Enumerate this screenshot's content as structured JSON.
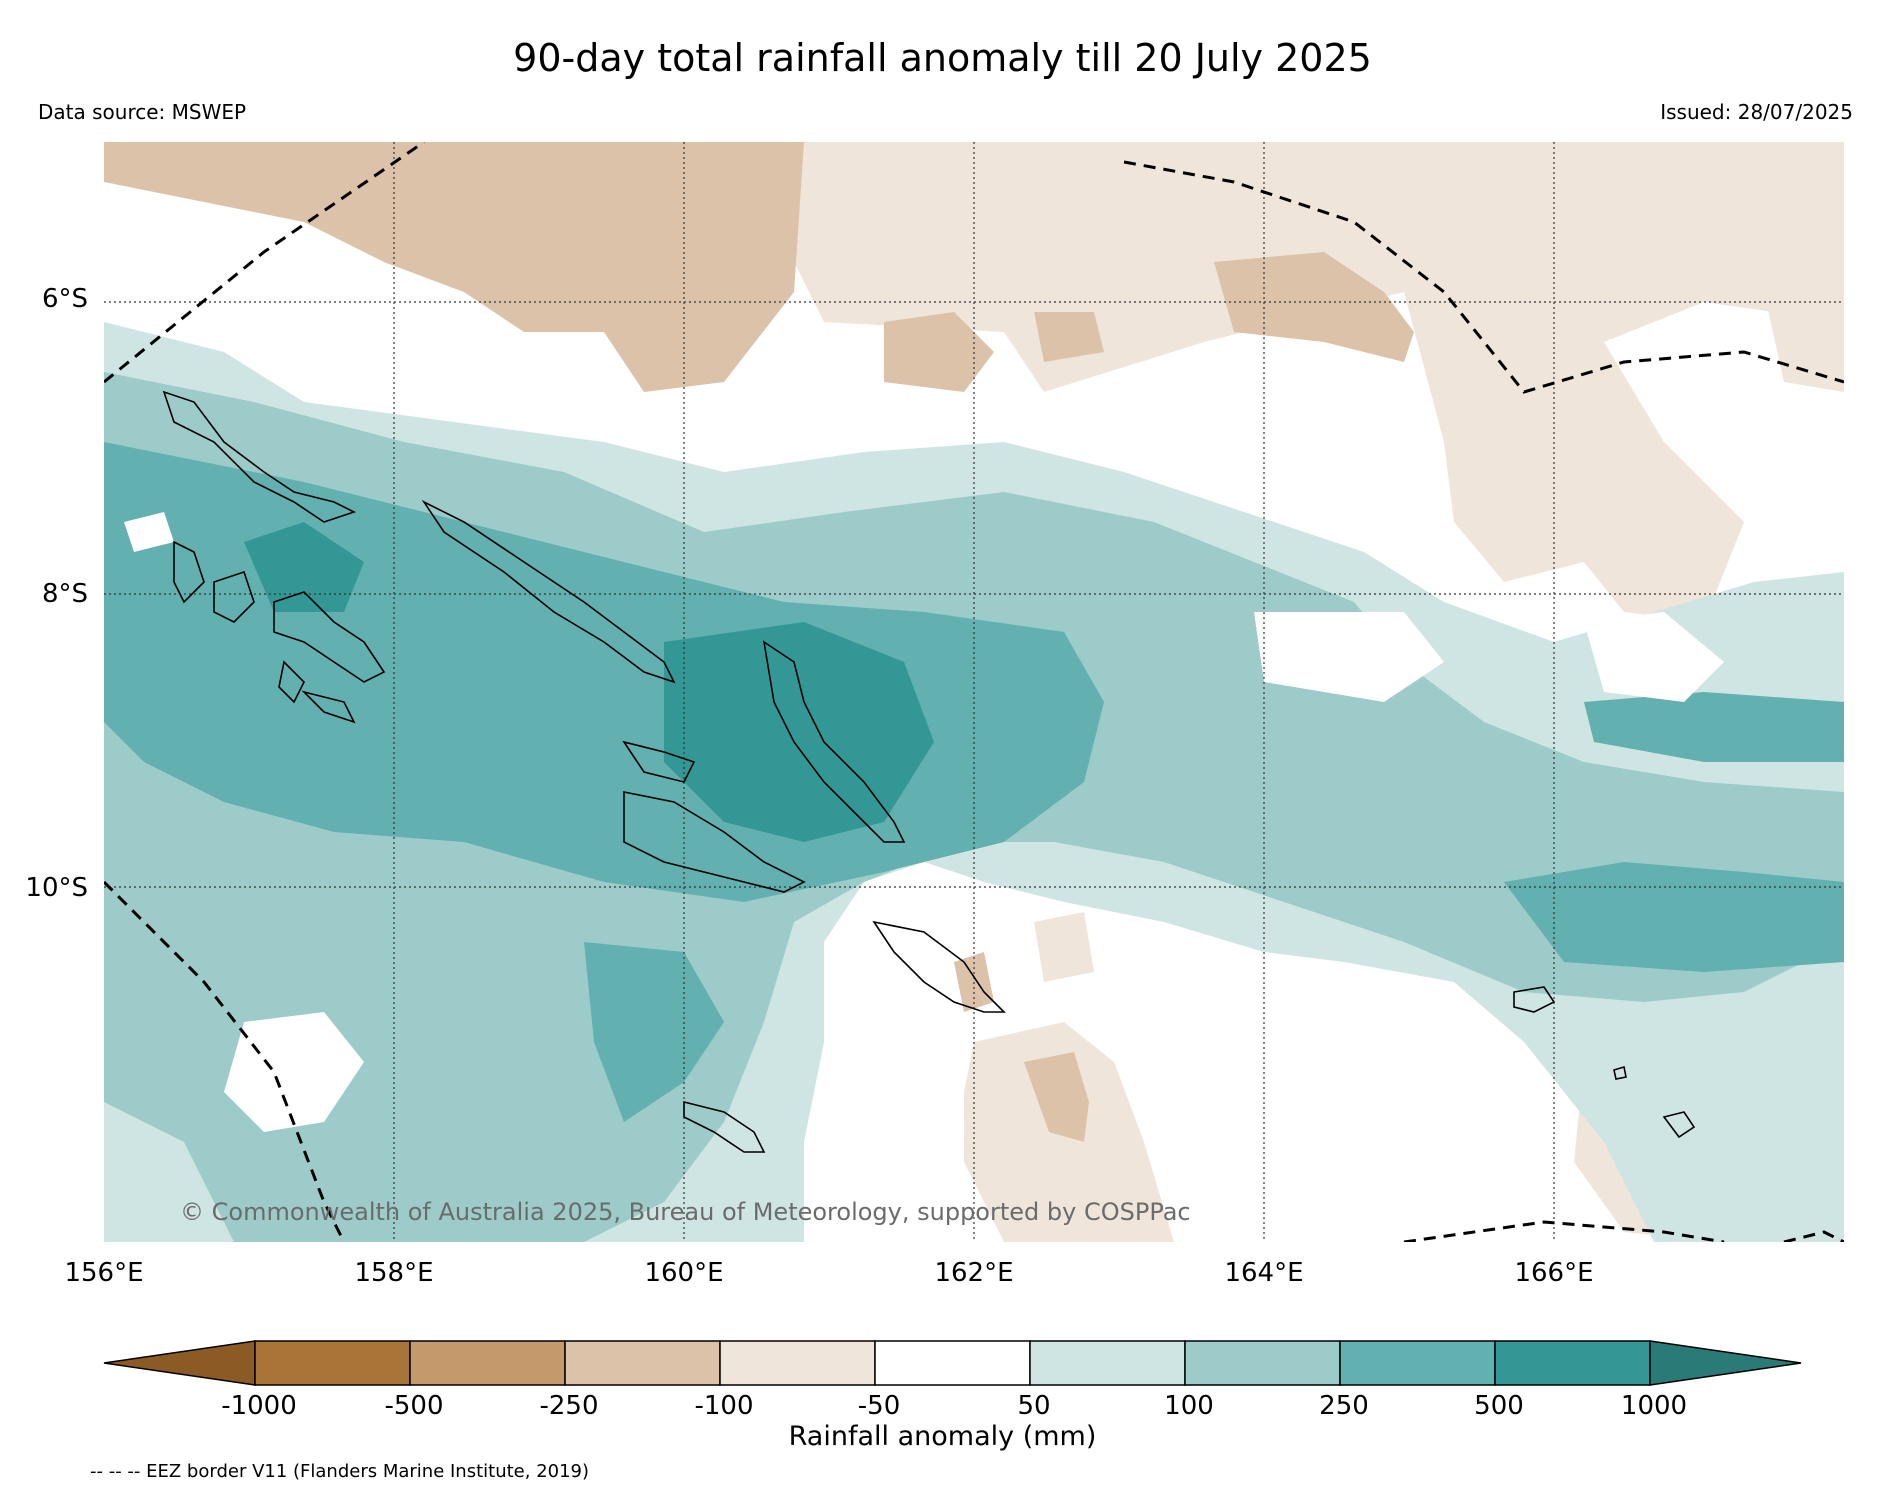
{
  "title": "90-day total rainfall anomaly till 20 July 2025",
  "data_source": "Data source: MSWEP",
  "issued": "Issued: 28/07/2025",
  "lat_labels": [
    "6°S",
    "8°S",
    "10°S"
  ],
  "lon_labels": [
    "156°E",
    "158°E",
    "160°E",
    "162°E",
    "164°E",
    "166°E"
  ],
  "copyright": "© Commonwealth of Australia 2025, Bureau of Meteorology, supported by COSPPac",
  "colorbar": {
    "label": "Rainfall anomaly (mm)",
    "ticks": [
      "-1000",
      "-500",
      "-250",
      "-100",
      "-50",
      "50",
      "100",
      "250",
      "500",
      "1000"
    ],
    "colors": [
      "#8c5a24",
      "#a97438",
      "#c49a6c",
      "#dbc2a8",
      "#f0e5db",
      "#ffffff",
      "#cfe5e3",
      "#9ccbca",
      "#63b0b0",
      "#339895",
      "#2a7a77"
    ]
  },
  "eez_note": "-- -- -- EEZ border V11 (Flanders Marine Institute, 2019)"
}
